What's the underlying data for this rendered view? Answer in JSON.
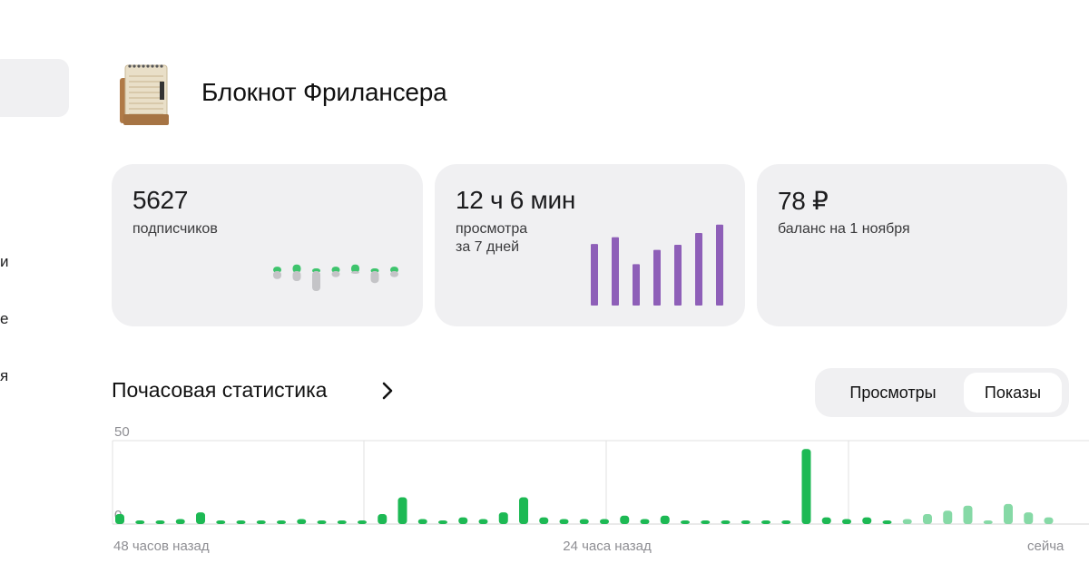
{
  "sidebar": {
    "items": [
      {
        "label": "и"
      },
      {
        "label": "е"
      },
      {
        "label": "я"
      }
    ]
  },
  "channel": {
    "title": "Блокнот Фрилансера",
    "avatar_icon": "notepad-icon"
  },
  "cards": {
    "subscribers": {
      "value": "5627",
      "label": "подписчиков",
      "trend": [
        {
          "up": 0.4,
          "down": 0.4
        },
        {
          "up": 0.6,
          "down": 0.5
        },
        {
          "up": 0.1,
          "down": 1.0
        },
        {
          "up": 0.4,
          "down": 0.3
        },
        {
          "up": 0.6,
          "down": 0.1
        },
        {
          "up": 0.1,
          "down": 0.6
        },
        {
          "up": 0.4,
          "down": 0.3
        }
      ]
    },
    "views": {
      "value": "12 ч 6 мин",
      "label": "просмотра",
      "sublabel": "за 7 дней",
      "weekly": [
        0.73,
        0.81,
        0.49,
        0.66,
        0.72,
        0.86,
        0.96
      ]
    },
    "balance": {
      "value": "78 ₽",
      "label": "баланс на 1 ноября"
    }
  },
  "hourly": {
    "title": "Почасовая статистика",
    "chevron_icon": "chevron-right-icon",
    "tabs": [
      {
        "label": "Просмотры",
        "active": false
      },
      {
        "label": "Показы",
        "active": true
      }
    ]
  },
  "chart_data": {
    "type": "bar",
    "ylim": [
      0,
      50
    ],
    "y_ticks": [
      "50",
      "0"
    ],
    "x_labels": [
      "48 часов назад",
      "24 часа назад",
      "сейча"
    ],
    "colors": {
      "bar": "#1db954",
      "bar_recent": "#86d9a6",
      "grid": "#e0e0e0"
    },
    "values": [
      6,
      2,
      2,
      3,
      7,
      2,
      2,
      2,
      2,
      3,
      2,
      2,
      2,
      6,
      16,
      3,
      2,
      4,
      3,
      7,
      16,
      4,
      3,
      3,
      3,
      5,
      3,
      5,
      2,
      2,
      2,
      2,
      2,
      2,
      45,
      4,
      3,
      4,
      2,
      3,
      6,
      8,
      11,
      2,
      12,
      7,
      4
    ],
    "recent_from_index": 39
  }
}
